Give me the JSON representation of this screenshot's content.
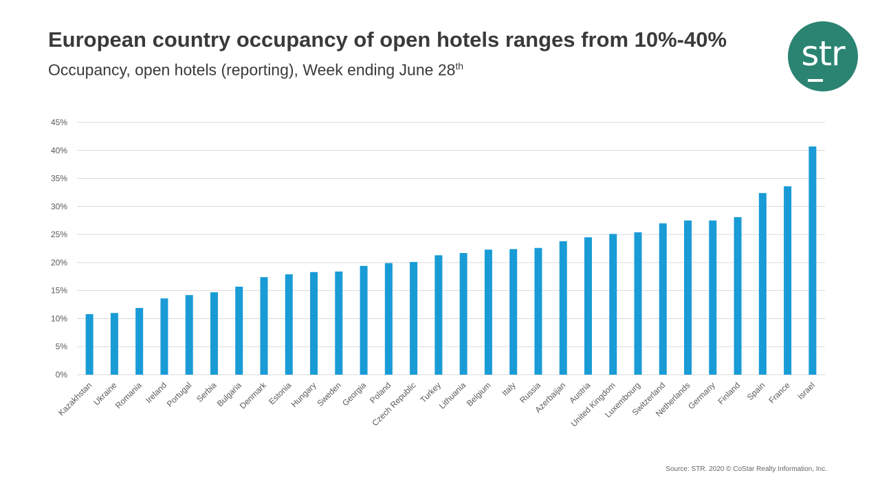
{
  "header": {
    "title": "European country occupancy of open hotels ranges from 10%-40%",
    "subtitle": "Occupancy, open hotels (reporting), Week ending June 28",
    "subtitle_sup": "th"
  },
  "logo": {
    "text": "str",
    "color": "#2b8472"
  },
  "footer": {
    "source": "Source: STR. 2020 © CoStar Realty Information, Inc."
  },
  "chart_data": {
    "type": "bar",
    "title": "",
    "xlabel": "",
    "ylabel": "",
    "ylim": [
      0,
      45
    ],
    "yticks": [
      "0%",
      "5%",
      "10%",
      "15%",
      "20%",
      "25%",
      "30%",
      "35%",
      "40%",
      "45%"
    ],
    "grid": true,
    "bar_color": "#199bd6",
    "categories": [
      "Kazakhstan",
      "Ukraine",
      "Romania",
      "Ireland",
      "Portugal",
      "Serbia",
      "Bulgaria",
      "Denmark",
      "Estonia",
      "Hungary",
      "Sweden",
      "Georgia",
      "Poland",
      "Czech Republic",
      "Turkey",
      "Lithuania",
      "Belgium",
      "Italy",
      "Russia",
      "Azerbaijan",
      "Austria",
      "United Kingdom",
      "Luxembourg",
      "Switzerland",
      "Netherlands",
      "Germany",
      "Finland",
      "Spain",
      "France",
      "Israel"
    ],
    "values": [
      10.8,
      11.0,
      11.9,
      13.6,
      14.2,
      14.7,
      15.7,
      17.4,
      17.9,
      18.3,
      18.4,
      19.4,
      19.9,
      20.1,
      21.3,
      21.7,
      22.3,
      22.4,
      22.6,
      23.8,
      24.5,
      25.1,
      25.4,
      27.0,
      27.5,
      27.5,
      28.1,
      32.4,
      33.6,
      40.7
    ]
  }
}
